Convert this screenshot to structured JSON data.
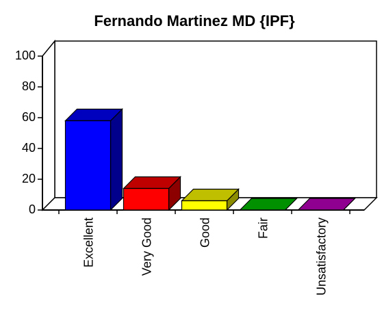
{
  "chart_data": {
    "type": "bar3d",
    "title": "Fernando Martinez MD {IPF}",
    "categories": [
      "Excellent",
      "Very Good",
      "Good",
      "Fair",
      "Unsatisfactory"
    ],
    "values": [
      58,
      14,
      6,
      0,
      0
    ],
    "colors": [
      "#0000ff",
      "#ff0000",
      "#ffff00",
      "#00c000",
      "#c000c0"
    ],
    "ylim": [
      0,
      100
    ],
    "yticks": [
      0,
      20,
      40,
      60,
      80,
      100
    ]
  }
}
